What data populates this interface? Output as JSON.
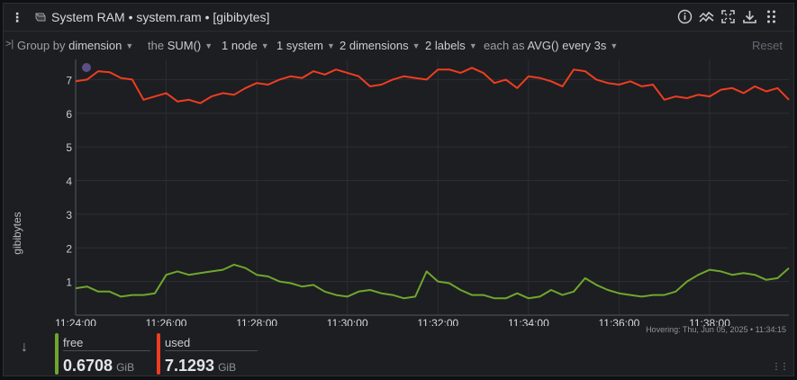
{
  "header": {
    "title": "System RAM • system.ram • [gibibytes]",
    "icons": [
      "menu-kebab-icon",
      "ram-chip-icon",
      "info-icon",
      "correlate-icon",
      "fullscreen-icon",
      "download-icon",
      "drag-grid-icon"
    ]
  },
  "filter": {
    "group_prefix": "Group by",
    "group_value": "dimension",
    "the_prefix": "the",
    "the_value": "SUM()",
    "nodes": "1 node",
    "systems": "1 system",
    "dimensions": "2 dimensions",
    "labels": "2 labels",
    "each_prefix": "each as",
    "each_value": "AVG() every 3s",
    "reset": "Reset"
  },
  "colors": {
    "free": "#6fa62c",
    "used": "#ef3d1f",
    "background": "#1c1e22",
    "grid": "#2b2e33"
  },
  "hover": "Hovering:  Thu, Jun 05, 2025 • 11:34:15",
  "legend": {
    "free": {
      "name": "free",
      "value": "0.6708",
      "unit": "GiB"
    },
    "used": {
      "name": "used",
      "value": "7.1293",
      "unit": "GiB"
    }
  },
  "chart_data": {
    "type": "line",
    "title": "System RAM",
    "ylabel": "gibibytes",
    "ylim": [
      0,
      7.6
    ],
    "yticks": [
      "1",
      "2",
      "3",
      "4",
      "5",
      "6",
      "7"
    ],
    "xticks": [
      "11:24:00",
      "11:26:00",
      "11:28:00",
      "11:30:00",
      "11:32:00",
      "11:34:00",
      "11:36:00",
      "11:38:00"
    ],
    "x_range_minutes": [
      0,
      15.75
    ],
    "x_minutes": [
      0,
      0.25,
      0.5,
      0.75,
      1,
      1.25,
      1.5,
      1.75,
      2,
      2.25,
      2.5,
      2.75,
      3,
      3.25,
      3.5,
      3.75,
      4,
      4.25,
      4.5,
      4.75,
      5,
      5.25,
      5.5,
      5.75,
      6,
      6.25,
      6.5,
      6.75,
      7,
      7.25,
      7.5,
      7.75,
      8,
      8.25,
      8.5,
      8.75,
      9,
      9.25,
      9.5,
      9.75,
      10,
      10.25,
      10.5,
      10.75,
      11,
      11.25,
      11.5,
      11.75,
      12,
      12.25,
      12.5,
      12.75,
      13,
      13.25,
      13.5,
      13.75,
      14,
      14.25,
      14.5,
      14.75,
      15,
      15.25,
      15.5,
      15.75
    ],
    "series": [
      {
        "name": "used",
        "color": "#ef3d1f",
        "values": [
          6.95,
          7.0,
          7.25,
          7.22,
          7.05,
          7.0,
          6.4,
          6.5,
          6.6,
          6.35,
          6.4,
          6.3,
          6.5,
          6.6,
          6.55,
          6.75,
          6.9,
          6.85,
          7.0,
          7.1,
          7.05,
          7.25,
          7.15,
          7.3,
          7.2,
          7.1,
          6.8,
          6.85,
          7.0,
          7.1,
          7.05,
          7.0,
          7.3,
          7.3,
          7.2,
          7.35,
          7.2,
          6.9,
          7.0,
          6.75,
          7.1,
          7.05,
          6.95,
          6.8,
          7.3,
          7.25,
          7.0,
          6.9,
          6.85,
          6.95,
          6.8,
          6.85,
          6.4,
          6.5,
          6.45,
          6.55,
          6.5,
          6.7,
          6.75,
          6.6,
          6.8,
          6.65,
          6.75,
          6.4
        ]
      },
      {
        "name": "free",
        "color": "#6fa62c",
        "values": [
          0.8,
          0.85,
          0.7,
          0.7,
          0.55,
          0.6,
          0.6,
          0.65,
          1.2,
          1.3,
          1.2,
          1.25,
          1.3,
          1.35,
          1.5,
          1.4,
          1.2,
          1.15,
          1.0,
          0.95,
          0.85,
          0.9,
          0.7,
          0.6,
          0.55,
          0.7,
          0.75,
          0.65,
          0.6,
          0.5,
          0.55,
          1.3,
          1.0,
          0.95,
          0.75,
          0.6,
          0.6,
          0.5,
          0.5,
          0.65,
          0.5,
          0.55,
          0.75,
          0.6,
          0.7,
          1.1,
          0.9,
          0.75,
          0.65,
          0.6,
          0.55,
          0.6,
          0.6,
          0.7,
          1.0,
          1.2,
          1.35,
          1.3,
          1.2,
          1.25,
          1.2,
          1.05,
          1.1,
          1.4
        ]
      }
    ],
    "grid": true,
    "legend": "bottom"
  }
}
